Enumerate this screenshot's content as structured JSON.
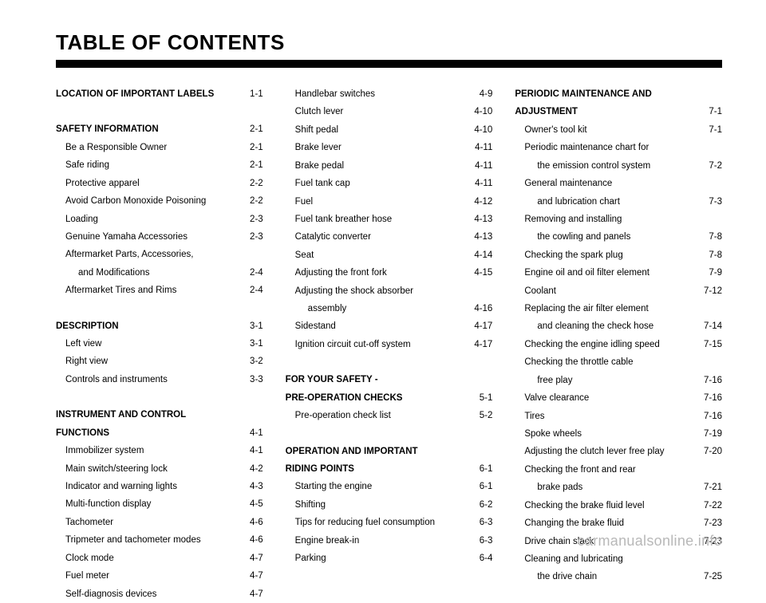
{
  "title": "TABLE OF CONTENTS",
  "watermark": "carmanualsonline.info",
  "columns": [
    [
      {
        "type": "entry",
        "bold": true,
        "label": "LOCATION OF IMPORTANT LABELS",
        "page": "1-1"
      },
      {
        "type": "spacer"
      },
      {
        "type": "entry",
        "bold": true,
        "label": "SAFETY INFORMATION",
        "page": "2-1"
      },
      {
        "type": "entry",
        "indent": false,
        "label": "Be a Responsible Owner",
        "page": "2-1",
        "sub": true
      },
      {
        "type": "entry",
        "label": "Safe riding",
        "page": "2-1",
        "sub": true
      },
      {
        "type": "entry",
        "label": "Protective apparel",
        "page": "2-2",
        "sub": true
      },
      {
        "type": "entry",
        "label": "Avoid Carbon Monoxide Poisoning",
        "page": "2-2",
        "sub": true
      },
      {
        "type": "entry",
        "label": "Loading",
        "page": "2-3",
        "sub": true
      },
      {
        "type": "entry",
        "label": "Genuine Yamaha Accessories",
        "page": "2-3",
        "sub": true
      },
      {
        "type": "entry",
        "label": "Aftermarket Parts, Accessories,",
        "nopage": true,
        "sub": true
      },
      {
        "type": "entry",
        "indent": true,
        "label": "and Modifications",
        "page": "2-4"
      },
      {
        "type": "entry",
        "label": "Aftermarket Tires and Rims",
        "page": "2-4",
        "sub": true
      },
      {
        "type": "spacer"
      },
      {
        "type": "entry",
        "bold": true,
        "label": "DESCRIPTION",
        "page": "3-1"
      },
      {
        "type": "entry",
        "label": "Left view",
        "page": "3-1",
        "sub": true
      },
      {
        "type": "entry",
        "label": "Right view",
        "page": "3-2",
        "sub": true
      },
      {
        "type": "entry",
        "label": "Controls and instruments",
        "page": "3-3",
        "sub": true
      },
      {
        "type": "spacer"
      },
      {
        "type": "entry",
        "bold": true,
        "label": "INSTRUMENT AND CONTROL",
        "nopage": true
      },
      {
        "type": "entry",
        "bold": true,
        "label": "FUNCTIONS",
        "page": "4-1"
      },
      {
        "type": "entry",
        "label": "Immobilizer system",
        "page": "4-1",
        "sub": true
      },
      {
        "type": "entry",
        "label": "Main switch/steering lock",
        "page": "4-2",
        "sub": true
      },
      {
        "type": "entry",
        "label": "Indicator and warning lights",
        "page": "4-3",
        "sub": true
      },
      {
        "type": "entry",
        "label": "Multi-function display",
        "page": "4-5",
        "sub": true
      },
      {
        "type": "entry",
        "label": "Tachometer",
        "page": "4-6",
        "sub": true
      },
      {
        "type": "entry",
        "label": "Tripmeter and tachometer modes",
        "page": "4-6",
        "sub": true
      },
      {
        "type": "entry",
        "label": "Clock mode",
        "page": "4-7",
        "sub": true
      },
      {
        "type": "entry",
        "label": "Fuel meter",
        "page": "4-7",
        "sub": true
      },
      {
        "type": "entry",
        "label": "Self-diagnosis devices",
        "page": "4-7",
        "sub": true
      }
    ],
    [
      {
        "type": "entry",
        "label": "Handlebar switches",
        "page": "4-9",
        "sub": true
      },
      {
        "type": "entry",
        "label": "Clutch lever",
        "page": "4-10",
        "sub": true
      },
      {
        "type": "entry",
        "label": "Shift pedal",
        "page": "4-10",
        "sub": true
      },
      {
        "type": "entry",
        "label": "Brake lever",
        "page": "4-11",
        "sub": true
      },
      {
        "type": "entry",
        "label": "Brake pedal",
        "page": "4-11",
        "sub": true
      },
      {
        "type": "entry",
        "label": "Fuel tank cap",
        "page": "4-11",
        "sub": true
      },
      {
        "type": "entry",
        "label": "Fuel",
        "page": "4-12",
        "sub": true
      },
      {
        "type": "entry",
        "label": "Fuel tank breather hose",
        "page": "4-13",
        "sub": true
      },
      {
        "type": "entry",
        "label": "Catalytic converter",
        "page": "4-13",
        "sub": true
      },
      {
        "type": "entry",
        "label": "Seat",
        "page": "4-14",
        "sub": true
      },
      {
        "type": "entry",
        "label": "Adjusting the front fork",
        "page": "4-15",
        "sub": true
      },
      {
        "type": "entry",
        "label": "Adjusting the shock absorber",
        "nopage": true,
        "sub": true
      },
      {
        "type": "entry",
        "indent": true,
        "label": "assembly",
        "page": "4-16"
      },
      {
        "type": "entry",
        "label": "Sidestand",
        "page": "4-17",
        "sub": true
      },
      {
        "type": "entry",
        "label": "Ignition circuit cut-off system",
        "page": "4-17",
        "sub": true
      },
      {
        "type": "spacer"
      },
      {
        "type": "entry",
        "bold": true,
        "label": "FOR YOUR SAFETY -",
        "nopage": true
      },
      {
        "type": "entry",
        "bold": true,
        "label": "PRE-OPERATION CHECKS",
        "page": "5-1"
      },
      {
        "type": "entry",
        "label": "Pre-operation check list",
        "page": "5-2",
        "sub": true
      },
      {
        "type": "spacer"
      },
      {
        "type": "entry",
        "bold": true,
        "label": "OPERATION AND IMPORTANT",
        "nopage": true
      },
      {
        "type": "entry",
        "bold": true,
        "label": "RIDING POINTS",
        "page": "6-1"
      },
      {
        "type": "entry",
        "label": "Starting the engine",
        "page": "6-1",
        "sub": true
      },
      {
        "type": "entry",
        "label": "Shifting",
        "page": "6-2",
        "sub": true
      },
      {
        "type": "entry",
        "label": "Tips for reducing fuel consumption",
        "page": "6-3",
        "sub": true
      },
      {
        "type": "entry",
        "label": "Engine break-in",
        "page": "6-3",
        "sub": true
      },
      {
        "type": "entry",
        "label": "Parking",
        "page": "6-4",
        "sub": true
      }
    ],
    [
      {
        "type": "entry",
        "bold": true,
        "label": "PERIODIC MAINTENANCE AND",
        "nopage": true
      },
      {
        "type": "entry",
        "bold": true,
        "label": "ADJUSTMENT",
        "page": "7-1"
      },
      {
        "type": "entry",
        "label": "Owner's tool kit",
        "page": "7-1",
        "sub": true
      },
      {
        "type": "entry",
        "label": "Periodic maintenance chart for",
        "nopage": true,
        "sub": true
      },
      {
        "type": "entry",
        "indent": true,
        "label": "the emission control system",
        "page": "7-2"
      },
      {
        "type": "entry",
        "label": "General maintenance",
        "nopage": true,
        "sub": true
      },
      {
        "type": "entry",
        "indent": true,
        "label": "and lubrication chart",
        "page": "7-3"
      },
      {
        "type": "entry",
        "label": "Removing and installing",
        "nopage": true,
        "sub": true
      },
      {
        "type": "entry",
        "indent": true,
        "label": "the cowling and panels",
        "page": "7-8"
      },
      {
        "type": "entry",
        "label": "Checking the spark plug",
        "page": "7-8",
        "sub": true
      },
      {
        "type": "entry",
        "label": "Engine oil and oil filter element",
        "page": "7-9",
        "sub": true
      },
      {
        "type": "entry",
        "label": "Coolant",
        "page": "7-12",
        "sub": true
      },
      {
        "type": "entry",
        "label": "Replacing the air filter element",
        "nopage": true,
        "sub": true
      },
      {
        "type": "entry",
        "indent": true,
        "label": "and cleaning the check hose",
        "page": "7-14"
      },
      {
        "type": "entry",
        "label": "Checking the engine idling speed",
        "page": "7-15",
        "sub": true
      },
      {
        "type": "entry",
        "label": "Checking the throttle cable",
        "nopage": true,
        "sub": true
      },
      {
        "type": "entry",
        "indent": true,
        "label": "free play",
        "page": "7-16"
      },
      {
        "type": "entry",
        "label": "Valve clearance",
        "page": "7-16",
        "sub": true
      },
      {
        "type": "entry",
        "label": "Tires",
        "page": "7-16",
        "sub": true
      },
      {
        "type": "entry",
        "label": "Spoke wheels",
        "page": "7-19",
        "sub": true
      },
      {
        "type": "entry",
        "label": "Adjusting the clutch lever free play",
        "page": "7-20",
        "sub": true
      },
      {
        "type": "entry",
        "label": "Checking the front and rear",
        "nopage": true,
        "sub": true
      },
      {
        "type": "entry",
        "indent": true,
        "label": "brake pads",
        "page": "7-21"
      },
      {
        "type": "entry",
        "label": "Checking the brake fluid level",
        "page": "7-22",
        "sub": true
      },
      {
        "type": "entry",
        "label": "Changing the brake fluid",
        "page": "7-23",
        "sub": true
      },
      {
        "type": "entry",
        "label": "Drive chain slack",
        "page": "7-23",
        "sub": true
      },
      {
        "type": "entry",
        "label": "Cleaning and lubricating",
        "nopage": true,
        "sub": true
      },
      {
        "type": "entry",
        "indent": true,
        "label": "the drive chain",
        "page": "7-25"
      }
    ]
  ]
}
